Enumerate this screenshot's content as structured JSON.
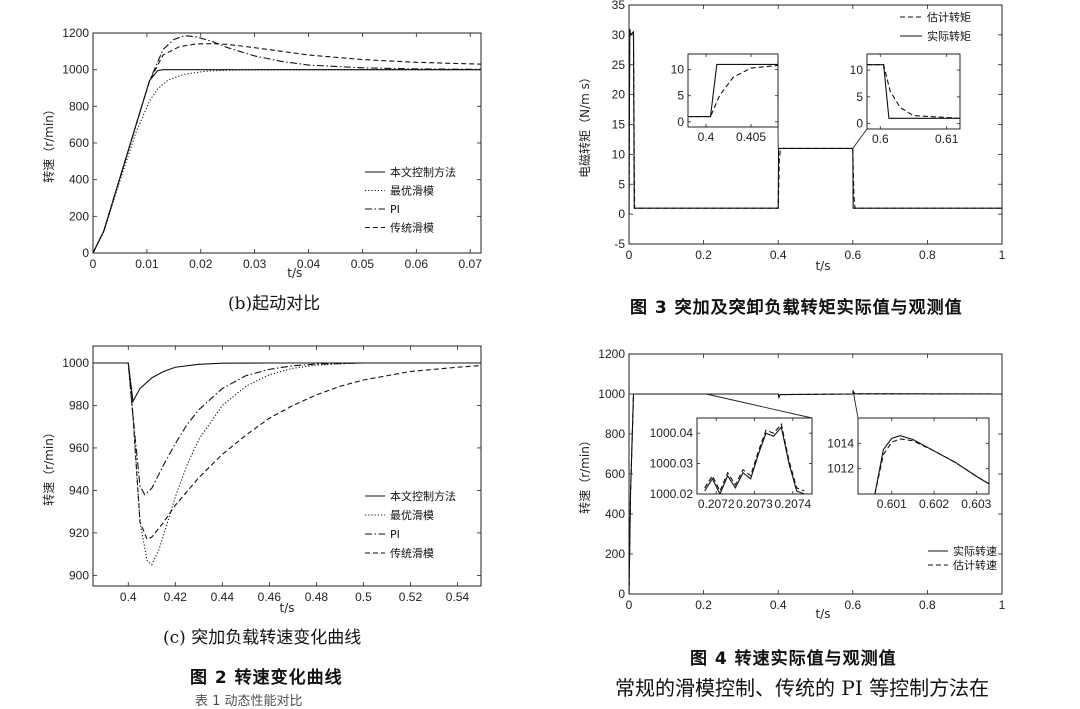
{
  "captions": {
    "b": "(b)起动对比",
    "c": "(c) 突加负载转速变化曲线",
    "fig2": "图 2   转速变化曲线",
    "fig3": "图 3  突加及突卸负载转矩实际值与观测值",
    "fig4": "图 4  转速实际值与观测值",
    "body_text": "常规的滑模控制、传统的 PI 等控制方法在",
    "cut_text": "表 1  动态性能对比"
  },
  "chart_data": [
    {
      "id": "start",
      "type": "line",
      "xlabel": "t/s",
      "ylabel": "转速（r/min）",
      "xlim": [
        0,
        0.072
      ],
      "ylim": [
        0,
        1200
      ],
      "xticks": [
        0,
        0.01,
        0.02,
        0.03,
        0.04,
        0.05,
        0.06,
        0.07
      ],
      "xtick_labels": [
        "0",
        "0.01",
        "0.02",
        "0.03",
        "0.04",
        "0.05",
        "0.06",
        "0.07"
      ],
      "yticks": [
        0,
        200,
        400,
        600,
        800,
        1000,
        1200
      ],
      "ytick_labels": [
        "0",
        "200",
        "400",
        "600",
        "800",
        "1000",
        "1200"
      ],
      "legend": "lower-right",
      "series": [
        {
          "name": "本文控制方法",
          "style": "solid",
          "x": [
            0,
            0.002,
            0.005,
            0.008,
            0.0105,
            0.012,
            0.013,
            0.02,
            0.072
          ],
          "y": [
            0,
            120,
            410,
            700,
            940,
            995,
            1000,
            1000,
            1000
          ]
        },
        {
          "name": "最优滑模",
          "style": "dotted",
          "x": [
            0,
            0.002,
            0.005,
            0.008,
            0.0105,
            0.012,
            0.014,
            0.017,
            0.021,
            0.026,
            0.035,
            0.072
          ],
          "y": [
            0,
            115,
            395,
            660,
            830,
            895,
            945,
            975,
            992,
            998,
            1000,
            1000
          ]
        },
        {
          "name": "PI",
          "style": "dashdot",
          "x": [
            0,
            0.002,
            0.005,
            0.008,
            0.0105,
            0.013,
            0.015,
            0.017,
            0.019,
            0.022,
            0.025,
            0.03,
            0.035,
            0.04,
            0.05,
            0.06,
            0.072
          ],
          "y": [
            0,
            120,
            410,
            700,
            940,
            1110,
            1165,
            1185,
            1180,
            1155,
            1120,
            1075,
            1045,
            1025,
            1010,
            1004,
            1002
          ]
        },
        {
          "name": "传统滑模",
          "style": "dashed",
          "x": [
            0,
            0.002,
            0.005,
            0.008,
            0.0105,
            0.013,
            0.016,
            0.019,
            0.022,
            0.025,
            0.03,
            0.035,
            0.04,
            0.05,
            0.06,
            0.072
          ],
          "y": [
            0,
            120,
            410,
            700,
            940,
            1080,
            1125,
            1140,
            1142,
            1138,
            1120,
            1100,
            1080,
            1055,
            1040,
            1030
          ]
        }
      ]
    },
    {
      "id": "load",
      "type": "line",
      "xlabel": "t/s",
      "ylabel": "转速（r/min）",
      "xlim": [
        0.385,
        0.55
      ],
      "ylim": [
        895,
        1008
      ],
      "xticks": [
        0.4,
        0.42,
        0.44,
        0.46,
        0.48,
        0.5,
        0.52,
        0.54
      ],
      "xtick_labels": [
        "0.4",
        "0.42",
        "0.44",
        "0.46",
        "0.48",
        "0.5",
        "0.52",
        "0.54"
      ],
      "yticks": [
        900,
        920,
        940,
        960,
        980,
        1000
      ],
      "ytick_labels": [
        "900",
        "920",
        "940",
        "960",
        "980",
        "1000"
      ],
      "legend": "lower-right",
      "series": [
        {
          "name": "本文控制方法",
          "style": "solid",
          "x": [
            0.385,
            0.4,
            0.402,
            0.405,
            0.41,
            0.415,
            0.42,
            0.43,
            0.44,
            0.46,
            0.55
          ],
          "y": [
            1000,
            1000,
            982,
            988,
            993,
            996,
            998,
            999.4,
            999.9,
            1000,
            1000
          ]
        },
        {
          "name": "最优滑模",
          "style": "dotted",
          "x": [
            0.385,
            0.4,
            0.402,
            0.405,
            0.408,
            0.41,
            0.413,
            0.417,
            0.42,
            0.425,
            0.43,
            0.44,
            0.45,
            0.46,
            0.47,
            0.48,
            0.49,
            0.5,
            0.52,
            0.55
          ],
          "y": [
            1000,
            1000,
            975,
            925,
            907,
            905,
            912,
            926,
            937,
            952,
            964,
            980,
            989,
            994.5,
            997.5,
            999,
            999.6,
            1000,
            1000,
            1000
          ]
        },
        {
          "name": "PI",
          "style": "dashdot",
          "x": [
            0.385,
            0.4,
            0.402,
            0.405,
            0.407,
            0.41,
            0.415,
            0.42,
            0.425,
            0.43,
            0.44,
            0.45,
            0.46,
            0.47,
            0.48,
            0.5,
            0.55
          ],
          "y": [
            1000,
            1000,
            975,
            942,
            938,
            941,
            952,
            962,
            971,
            978,
            988,
            994,
            997,
            998.7,
            999.5,
            1000,
            1000
          ]
        },
        {
          "name": "传统滑模",
          "style": "dashed",
          "x": [
            0.385,
            0.4,
            0.402,
            0.405,
            0.408,
            0.41,
            0.415,
            0.42,
            0.43,
            0.44,
            0.45,
            0.46,
            0.47,
            0.48,
            0.49,
            0.5,
            0.52,
            0.54,
            0.55
          ],
          "y": [
            1000,
            1000,
            975,
            925,
            917,
            918,
            925,
            933,
            946,
            957,
            966,
            974,
            980,
            985,
            989,
            992,
            996,
            998,
            998.8
          ]
        }
      ]
    },
    {
      "id": "torque",
      "type": "line",
      "xlabel": "t/s",
      "ylabel": "电磁转矩（N/m s）",
      "xlim": [
        0,
        1
      ],
      "ylim": [
        -5,
        35
      ],
      "xticks": [
        0,
        0.2,
        0.4,
        0.6,
        0.8,
        1
      ],
      "xtick_labels": [
        "0",
        "0.2",
        "0.4",
        "0.6",
        "0.8",
        "1"
      ],
      "yticks": [
        -5,
        0,
        5,
        10,
        15,
        20,
        25,
        30,
        35
      ],
      "ytick_labels": [
        "-5",
        "0",
        "5",
        "10",
        "15",
        "20",
        "25",
        "30",
        "35"
      ],
      "legend": "top-right",
      "series": [
        {
          "name": "估计转矩",
          "style": "dashed",
          "x": [
            0,
            0.002,
            0.004,
            0.012,
            0.015,
            0.4,
            0.403,
            0.406,
            0.6,
            0.603,
            0.606,
            1
          ],
          "y": [
            0,
            31,
            30,
            30.5,
            1,
            1,
            9,
            11,
            11,
            3,
            1,
            1
          ]
        },
        {
          "name": "实际转矩",
          "style": "solid",
          "x": [
            0,
            0.002,
            0.004,
            0.012,
            0.014,
            0.4,
            0.401,
            0.6,
            0.601,
            1
          ],
          "y": [
            0,
            31,
            30,
            30.5,
            1,
            1,
            11,
            11,
            1,
            1
          ]
        }
      ],
      "insets": [
        {
          "xlim": [
            0.398,
            0.408
          ],
          "ylim": [
            -1,
            13
          ],
          "xticks": [
            0.4,
            0.405
          ],
          "xtick_labels": [
            "0.4",
            "0.405"
          ],
          "yticks": [
            0,
            5,
            10
          ],
          "ytick_labels": [
            "0",
            "5",
            "10"
          ],
          "series": [
            {
              "style": "solid",
              "x": [
                0.398,
                0.4005,
                0.4012,
                0.4025,
                0.408
              ],
              "y": [
                1,
                1,
                11,
                11,
                11
              ]
            },
            {
              "style": "dashed",
              "x": [
                0.398,
                0.4005,
                0.4015,
                0.403,
                0.405,
                0.408
              ],
              "y": [
                1,
                1,
                5,
                8.5,
                10.3,
                10.8
              ]
            }
          ]
        },
        {
          "xlim": [
            0.598,
            0.612
          ],
          "ylim": [
            -1,
            13
          ],
          "xticks": [
            0.6,
            0.61
          ],
          "xtick_labels": [
            "0.6",
            "0.61"
          ],
          "yticks": [
            0,
            5,
            10
          ],
          "ytick_labels": [
            "0",
            "5",
            "10"
          ],
          "series": [
            {
              "style": "solid",
              "x": [
                0.598,
                0.6005,
                0.6013,
                0.603,
                0.612
              ],
              "y": [
                11,
                11,
                1,
                1,
                1
              ]
            },
            {
              "style": "dashed",
              "x": [
                0.598,
                0.6005,
                0.6015,
                0.603,
                0.605,
                0.612
              ],
              "y": [
                11,
                11,
                6,
                3,
                1.5,
                1
              ]
            }
          ]
        }
      ]
    },
    {
      "id": "speed_obs",
      "type": "line",
      "xlabel": "t/s",
      "ylabel": "转速（r/min）",
      "xlim": [
        0,
        1
      ],
      "ylim": [
        0,
        1200
      ],
      "xticks": [
        0,
        0.2,
        0.4,
        0.6,
        0.8,
        1
      ],
      "xtick_labels": [
        "0",
        "0.2",
        "0.4",
        "0.6",
        "0.8",
        "1"
      ],
      "yticks": [
        0,
        200,
        400,
        600,
        800,
        1000,
        1200
      ],
      "ytick_labels": [
        "0",
        "200",
        "400",
        "600",
        "800",
        "1000",
        "1200"
      ],
      "legend": "lower-right",
      "series": [
        {
          "name": "实际转速",
          "style": "solid",
          "x": [
            0,
            0.004,
            0.012,
            0.4,
            0.402,
            0.405,
            0.6,
            0.601,
            0.605,
            1
          ],
          "y": [
            0,
            500,
            1000,
            1000,
            983,
            997,
            1000,
            1014,
            1001,
            1000
          ]
        },
        {
          "name": "估计转速",
          "style": "dashed",
          "x": [
            0,
            0.004,
            0.012,
            0.4,
            0.402,
            0.405,
            0.6,
            0.601,
            0.605,
            1
          ],
          "y": [
            0,
            490,
            1000,
            1000,
            985,
            997,
            1000,
            1013,
            1001,
            1000
          ]
        }
      ],
      "insets": [
        {
          "xlim": [
            0.20715,
            0.20745
          ],
          "ylim": [
            1000.02,
            1000.045
          ],
          "xticks": [
            0.2072,
            0.2073,
            0.2074
          ],
          "xtick_labels": [
            "0.2072",
            "0.2073",
            "0.2074"
          ],
          "yticks": [
            1000.02,
            1000.03,
            1000.04
          ],
          "ytick_labels": [
            "1000.02",
            "1000.03",
            "1000.04"
          ],
          "series": [
            {
              "style": "solid",
              "x": [
                0.20717,
                0.20719,
                0.20721,
                0.20723,
                0.20725,
                0.20727,
                0.20729,
                0.20731,
                0.20733,
                0.20735,
                0.20737,
                0.20739,
                0.20741,
                0.20743
              ],
              "y": [
                1000.021,
                1000.025,
                1000.02,
                1000.026,
                1000.022,
                1000.027,
                1000.025,
                1000.033,
                1000.04,
                1000.039,
                1000.042,
                1000.03,
                1000.021,
                1000.02
              ]
            },
            {
              "style": "dashed",
              "x": [
                0.20717,
                0.20719,
                0.20721,
                0.20723,
                0.20725,
                0.20727,
                0.20729,
                0.20731,
                0.20733,
                0.20735,
                0.20737,
                0.20739,
                0.20741,
                0.20743
              ],
              "y": [
                1000.022,
                1000.026,
                1000.021,
                1000.027,
                1000.023,
                1000.028,
                1000.026,
                1000.034,
                1000.041,
                1000.04,
                1000.043,
                1000.031,
                1000.022,
                1000.021
              ]
            }
          ]
        },
        {
          "xlim": [
            0.6002,
            0.6033
          ],
          "ylim": [
            1010,
            1016
          ],
          "xticks": [
            0.601,
            0.602,
            0.603
          ],
          "xtick_labels": [
            "0.601",
            "0.602",
            "0.603"
          ],
          "yticks": [
            1012,
            1014
          ],
          "ytick_labels": [
            "1012",
            "1014"
          ],
          "series": [
            {
              "style": "solid",
              "x": [
                0.6006,
                0.6008,
                0.601,
                0.6012,
                0.6015,
                0.602,
                0.6025,
                0.603,
                0.6033
              ],
              "y": [
                1010,
                1013.5,
                1014.4,
                1014.6,
                1014.3,
                1013.4,
                1012.5,
                1011.4,
                1010.8
              ]
            },
            {
              "style": "dashed",
              "x": [
                0.6006,
                0.6008,
                0.601,
                0.6012,
                0.6015,
                0.602,
                0.6025,
                0.603,
                0.6033
              ],
              "y": [
                1010,
                1013.1,
                1014.1,
                1014.35,
                1014.2,
                1013.4,
                1012.5,
                1011.4,
                1010.8
              ]
            }
          ]
        }
      ]
    }
  ]
}
